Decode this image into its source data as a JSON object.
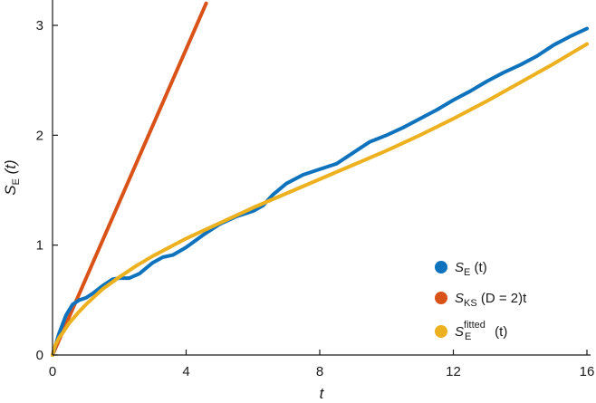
{
  "chart_data": {
    "type": "line",
    "xlabel": "t",
    "ylabel": {
      "main": "S",
      "sub": "E",
      "rest": " (t)"
    },
    "xlim": [
      0,
      16
    ],
    "ylim": [
      0,
      3.2
    ],
    "xticks": [
      0,
      4,
      8,
      12,
      16
    ],
    "yticks": [
      0,
      1,
      2,
      3
    ],
    "grid": false,
    "legend_position": "bottom-right",
    "series": [
      {
        "key": "se",
        "color": "#0E72BD",
        "legend": {
          "main": "S",
          "sub": "E",
          "rest": " (t)"
        },
        "x": [
          0,
          0.2,
          0.4,
          0.6,
          0.8,
          1.0,
          1.2,
          1.5,
          1.8,
          2.0,
          2.3,
          2.6,
          3.0,
          3.3,
          3.6,
          4.0,
          4.5,
          5.0,
          5.5,
          6.0,
          6.3,
          6.6,
          7.0,
          7.5,
          8.0,
          8.5,
          9.0,
          9.5,
          10.0,
          10.5,
          11.0,
          11.5,
          12.0,
          12.5,
          13.0,
          13.5,
          14.0,
          14.5,
          15.0,
          15.5,
          16.0
        ],
        "y": [
          0,
          0.2,
          0.36,
          0.46,
          0.5,
          0.52,
          0.56,
          0.63,
          0.69,
          0.7,
          0.7,
          0.74,
          0.84,
          0.89,
          0.91,
          0.98,
          1.09,
          1.19,
          1.26,
          1.31,
          1.36,
          1.46,
          1.56,
          1.64,
          1.69,
          1.74,
          1.84,
          1.94,
          2.0,
          2.07,
          2.15,
          2.23,
          2.32,
          2.4,
          2.49,
          2.57,
          2.64,
          2.72,
          2.82,
          2.9,
          2.97
        ]
      },
      {
        "key": "sks",
        "color": "#D95319",
        "legend": {
          "main": "S",
          "sub": "KS",
          "rest": " (D = 2)t"
        },
        "x": [
          0,
          4.6
        ],
        "y": [
          0,
          3.2
        ]
      },
      {
        "key": "fit",
        "color": "#EDB120",
        "legend": {
          "main": "S",
          "sup": "fitted",
          "sub": "E",
          "rest": " (t)"
        },
        "x": [
          0,
          0.05,
          0.1,
          0.2,
          0.3,
          0.5,
          0.75,
          1.0,
          1.5,
          2.0,
          2.5,
          3.0,
          4.0,
          5.0,
          6.0,
          7.0,
          8.0,
          9.0,
          10.0,
          11.0,
          12.0,
          13.0,
          14.0,
          15.0,
          16.0
        ],
        "y": [
          0,
          0.06,
          0.1,
          0.16,
          0.2,
          0.29,
          0.38,
          0.46,
          0.6,
          0.71,
          0.81,
          0.9,
          1.06,
          1.2,
          1.34,
          1.47,
          1.6,
          1.73,
          1.86,
          2.0,
          2.15,
          2.31,
          2.48,
          2.65,
          2.83
        ]
      }
    ]
  }
}
